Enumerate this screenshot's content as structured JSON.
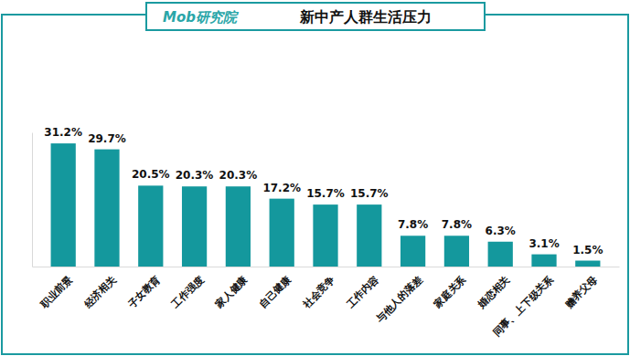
{
  "chart_data": {
    "type": "bar",
    "title": "新中产人群生活压力",
    "annotations": [
      "Mob研究院"
    ],
    "categories": [
      "职业前景",
      "经济相关",
      "子女教育",
      "工作强度",
      "家人健康",
      "自己健康",
      "社会竞争",
      "工作内容",
      "与他人的落差",
      "家庭关系",
      "婚恋相关",
      "同事、上下级关系",
      "赡养父母"
    ],
    "values": [
      31.2,
      29.7,
      20.5,
      20.3,
      20.3,
      17.2,
      15.7,
      15.7,
      7.8,
      7.8,
      6.3,
      3.1,
      1.5
    ],
    "value_labels": [
      "31.2%",
      "29.7%",
      "20.5%",
      "20.3%",
      "20.3%",
      "17.2%",
      "15.7%",
      "15.7%",
      "7.8%",
      "7.8%",
      "6.3%",
      "3.1%",
      "1.5%"
    ],
    "color": "#14989d",
    "ylim": [
      0,
      34
    ],
    "grid": false,
    "data_labels": true,
    "tick_labels": "x"
  }
}
